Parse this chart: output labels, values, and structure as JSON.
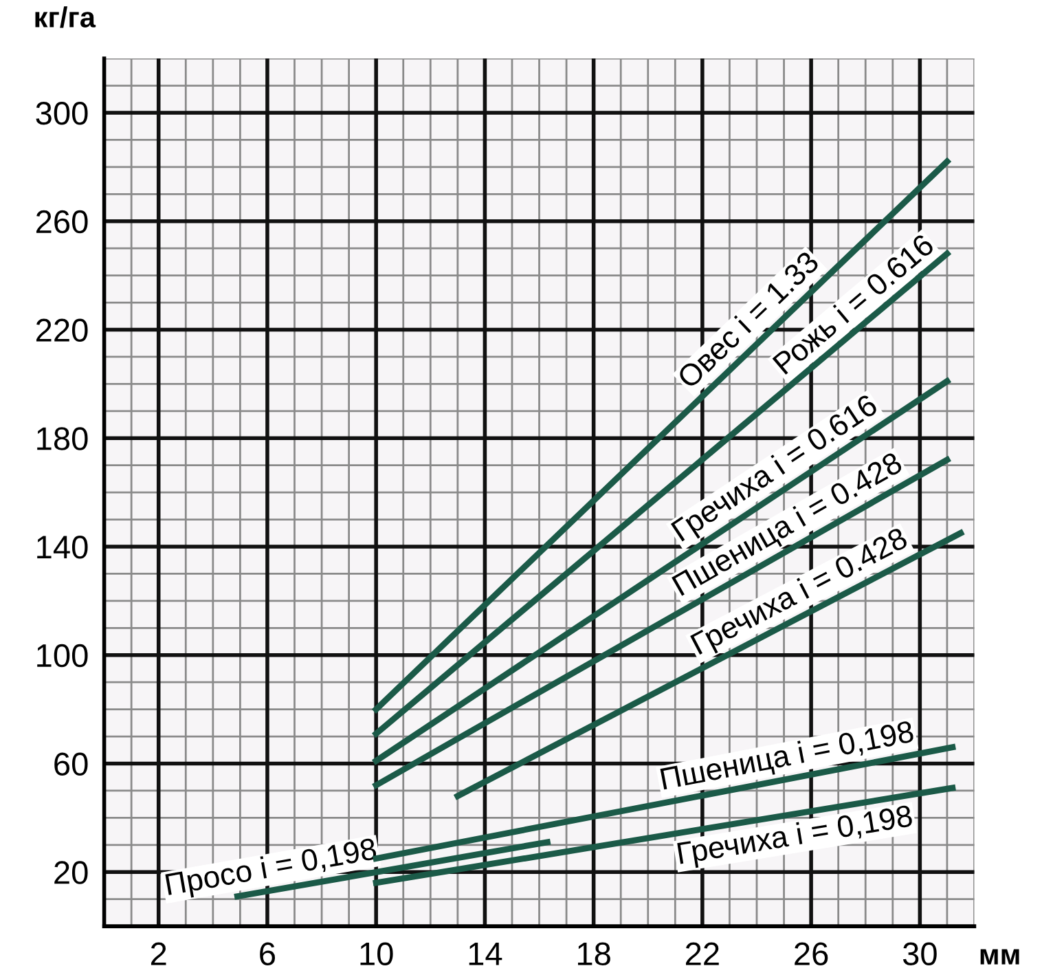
{
  "chart_data": {
    "type": "line",
    "xlabel": "мм",
    "ylabel": "кг/га",
    "xlim": [
      0,
      32
    ],
    "ylim": [
      0,
      320
    ],
    "xticks": [
      2,
      6,
      10,
      14,
      18,
      22,
      26,
      30
    ],
    "yticks": [
      20,
      60,
      100,
      140,
      180,
      220,
      260,
      300
    ],
    "grid": true,
    "marker": "none",
    "line_style": "solid",
    "series": [
      {
        "name": "Овес i = 1.33",
        "color": "#1b5a48",
        "x": [
          10,
          31
        ],
        "values": [
          80,
          282
        ]
      },
      {
        "name": "Рожь i = 0.616",
        "color": "#1b5a48",
        "x": [
          10,
          31
        ],
        "values": [
          71,
          248
        ]
      },
      {
        "name": "Гречиха i = 0.616",
        "color": "#1b5a48",
        "x": [
          10,
          31
        ],
        "values": [
          61,
          201
        ]
      },
      {
        "name": "Пшеница i = 0.428",
        "color": "#1b5a48",
        "x": [
          10,
          31
        ],
        "values": [
          52,
          172
        ]
      },
      {
        "name": "Гречиха i = 0.428",
        "color": "#1b5a48",
        "x": [
          13,
          31.5
        ],
        "values": [
          48,
          145
        ]
      },
      {
        "name": "Пшеница i = 0,198",
        "color": "#1b5a48",
        "x": [
          10,
          31.2
        ],
        "values": [
          25,
          66
        ]
      },
      {
        "name": "Гречиха i = 0,198",
        "color": "#1b5a48",
        "x": [
          10,
          31.2
        ],
        "values": [
          16,
          51
        ]
      },
      {
        "name": "Просо i = 0,198",
        "color": "#1b5a48",
        "x": [
          4.9,
          16.3
        ],
        "values": [
          11,
          31
        ]
      }
    ]
  }
}
